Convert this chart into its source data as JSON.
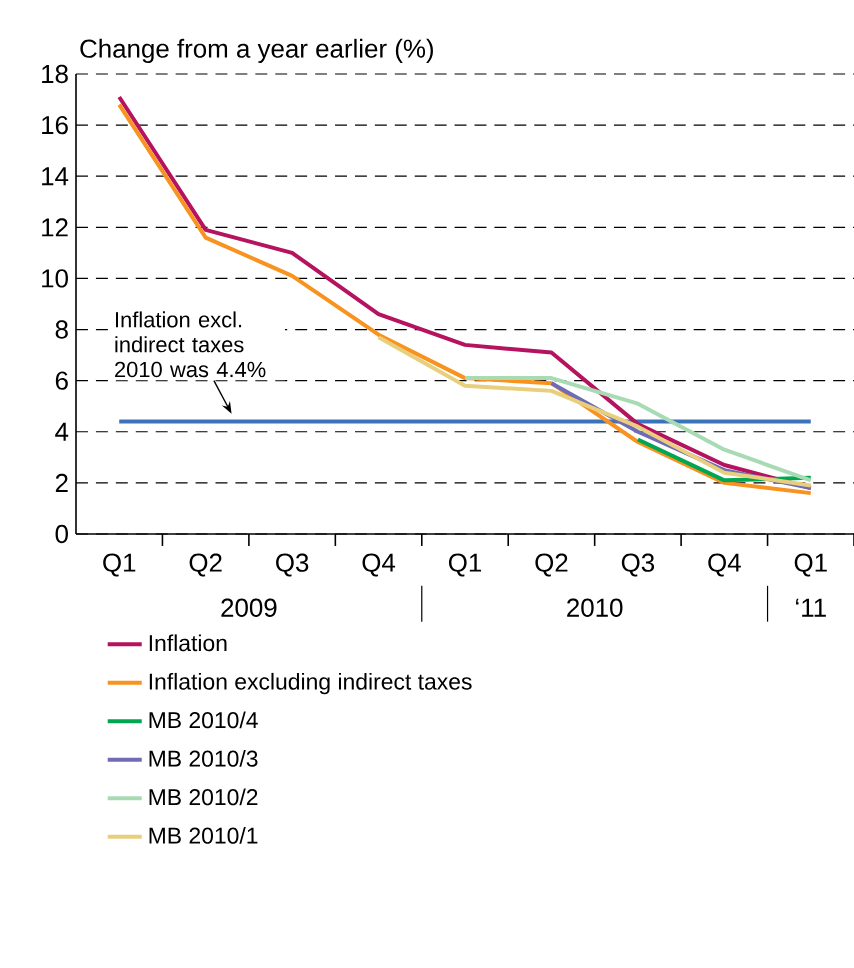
{
  "chart_data": {
    "type": "line",
    "ylabel": "Change from a year earlier (%)",
    "categories": [
      "Q1",
      "Q2",
      "Q3",
      "Q4",
      "Q1",
      "Q2",
      "Q3",
      "Q4",
      "Q1"
    ],
    "series": [
      {
        "name": "Inflation",
        "color": "#b5135f",
        "values": [
          17.1,
          11.9,
          11.0,
          8.6,
          7.4,
          7.1,
          4.3,
          2.7,
          1.8
        ]
      },
      {
        "name": "Inflation excluding indirect taxes",
        "color": "#f7931e",
        "values": [
          16.8,
          11.6,
          10.1,
          7.8,
          6.1,
          5.9,
          3.6,
          2.0,
          1.6
        ]
      },
      {
        "name": "MB 2010/4",
        "color": "#00a651",
        "values": [
          null,
          null,
          null,
          null,
          null,
          null,
          3.7,
          2.1,
          2.2
        ]
      },
      {
        "name": "MB 2010/3",
        "color": "#6f6bb5",
        "values": [
          null,
          null,
          null,
          null,
          null,
          5.9,
          4.0,
          2.5,
          1.8
        ]
      },
      {
        "name": "MB 2010/2",
        "color": "#a8dbb4",
        "values": [
          null,
          null,
          null,
          null,
          6.1,
          6.1,
          5.1,
          3.3,
          2.1
        ]
      },
      {
        "name": "MB 2010/1",
        "color": "#e8cf7d",
        "values": [
          null,
          null,
          null,
          7.7,
          5.8,
          5.6,
          4.2,
          2.4,
          1.9
        ]
      }
    ],
    "ylim": [
      0,
      18
    ],
    "yticks": [
      0,
      2,
      4,
      6,
      8,
      10,
      12,
      14,
      16,
      18
    ],
    "grid": "y",
    "legend": "bottom",
    "ref_lines": [
      {
        "axis": "y",
        "value": 4.4,
        "label": "Inflation excl. indirect taxes 2010 was 4.4%",
        "color": "#3b73b9"
      }
    ],
    "annotations": [
      "2009",
      "2010",
      "‘11"
    ]
  }
}
